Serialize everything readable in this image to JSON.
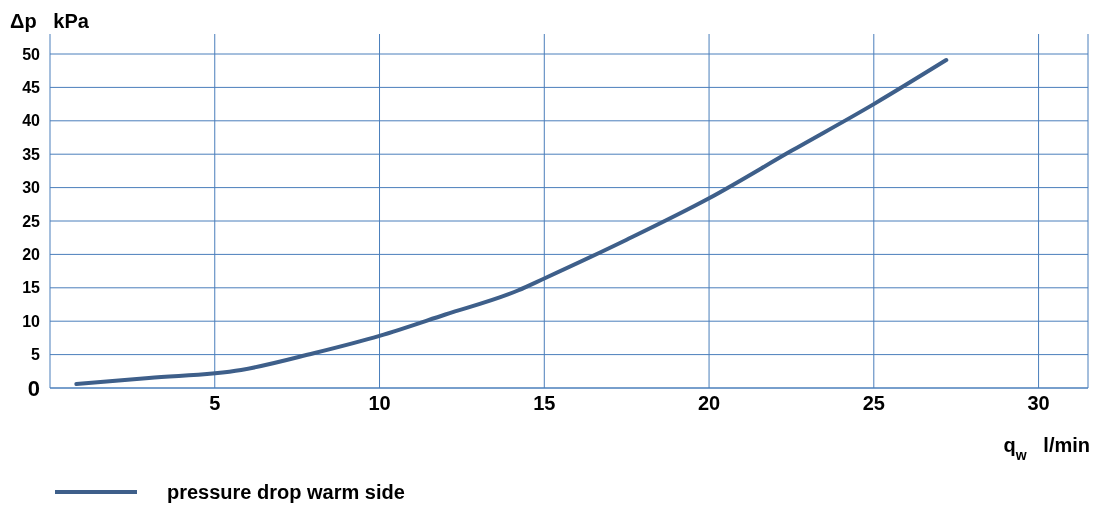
{
  "chart_data": {
    "type": "line",
    "xlabel": "q$_{w}$   l/min",
    "ylabel": "Δp   kPa",
    "xlim": [
      0,
      31.5
    ],
    "xticks": [
      5,
      10,
      15,
      20,
      25,
      30
    ],
    "ylim": [
      0,
      50
    ],
    "yticks": [
      0,
      5,
      10,
      15,
      20,
      25,
      30,
      35,
      40,
      45,
      50
    ],
    "grid": true,
    "legend": "bottom",
    "line_style": "solid",
    "marker": "none",
    "series": [
      {
        "name": "pressure drop warm side",
        "color": "#3e5f8a",
        "x": [
          0.8,
          3,
          5.8,
          8,
          10,
          12,
          14.2,
          15,
          17.5,
          20,
          22.5,
          25,
          27.2
        ],
        "values": [
          0.6,
          1.5,
          2.7,
          5.2,
          7.8,
          11,
          14.6,
          16.4,
          22.2,
          28.4,
          35.5,
          42.5,
          49.1
        ]
      }
    ]
  }
}
